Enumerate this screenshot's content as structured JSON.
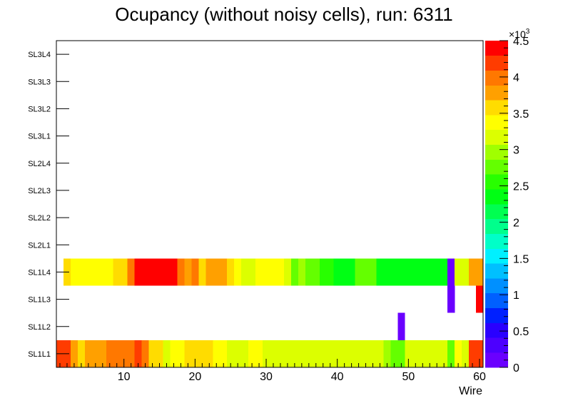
{
  "chart_data": {
    "type": "heatmap",
    "title": "Ocupancy (without noisy cells), run: 6311",
    "xlabel": "Wire",
    "ylabel": "",
    "xlim": [
      0.5,
      60.5
    ],
    "x_ticks": [
      "10",
      "20",
      "30",
      "40",
      "50",
      "60"
    ],
    "x_tick_values": [
      10,
      20,
      30,
      40,
      50,
      60
    ],
    "layers": [
      "SL1L1",
      "SL1L2",
      "SL1L3",
      "SL1L4",
      "SL2L1",
      "SL2L2",
      "SL2L3",
      "SL2L4",
      "SL3L1",
      "SL3L2",
      "SL3L3",
      "SL3L4"
    ],
    "zlim": [
      0,
      4500
    ],
    "z_ticks": [
      "0",
      "0.5",
      "1",
      "1.5",
      "2",
      "2.5",
      "3",
      "3.5",
      "4",
      "4.5"
    ],
    "z_tick_values": [
      0,
      500,
      1000,
      1500,
      2000,
      2500,
      3000,
      3500,
      4000,
      4500
    ],
    "z_exponent_base": "×10",
    "z_exponent_power": "3",
    "palette": [
      "#6a00ff",
      "#4c00ff",
      "#2a00ff",
      "#0020ff",
      "#0060ff",
      "#0090ff",
      "#00c0ff",
      "#00f0ff",
      "#00ffc8",
      "#00ff8c",
      "#00ff50",
      "#00ff14",
      "#28ff00",
      "#64ff00",
      "#a0ff00",
      "#dcff00",
      "#ffff00",
      "#ffdc00",
      "#ffa000",
      "#ff7800",
      "#ff3c00",
      "#ff0000"
    ],
    "rows": {
      "SL1L1": [
        4200,
        4200,
        3700,
        3500,
        3850,
        3800,
        3800,
        3950,
        3950,
        3950,
        3950,
        4100,
        3950,
        3600,
        3600,
        3250,
        3400,
        3350,
        3500,
        3500,
        3500,
        3500,
        3350,
        3300,
        3200,
        3200,
        3200,
        3400,
        3300,
        3150,
        3200,
        3200,
        3100,
        3100,
        3100,
        3100,
        3100,
        3100,
        3200,
        3100,
        3100,
        3100,
        3100,
        3100,
        3100,
        3100,
        3000,
        2700,
        2700,
        3100,
        3100,
        3100,
        3100,
        3100,
        3100,
        2750,
        3400,
        3150,
        4200,
        4200
      ],
      "SL1L2": [
        null,
        null,
        null,
        null,
        null,
        null,
        null,
        null,
        null,
        null,
        null,
        null,
        null,
        null,
        null,
        null,
        null,
        null,
        null,
        null,
        null,
        null,
        null,
        null,
        null,
        null,
        null,
        null,
        null,
        null,
        null,
        null,
        null,
        null,
        null,
        null,
        null,
        null,
        null,
        null,
        null,
        null,
        null,
        null,
        null,
        null,
        null,
        null,
        60,
        null,
        null,
        null,
        null,
        null,
        null,
        null,
        null,
        null,
        null,
        null
      ],
      "SL1L3": [
        null,
        null,
        null,
        null,
        null,
        null,
        null,
        null,
        null,
        null,
        null,
        null,
        null,
        null,
        null,
        null,
        null,
        null,
        null,
        null,
        null,
        null,
        null,
        null,
        null,
        null,
        null,
        null,
        null,
        null,
        null,
        null,
        null,
        null,
        null,
        null,
        null,
        null,
        null,
        null,
        null,
        null,
        null,
        null,
        null,
        null,
        null,
        null,
        null,
        null,
        null,
        null,
        null,
        null,
        null,
        60,
        null,
        null,
        null,
        4450
      ],
      "SL1L4": [
        null,
        3500,
        3400,
        3400,
        3400,
        3400,
        3400,
        3400,
        3600,
        3500,
        4000,
        4300,
        4400,
        4400,
        4400,
        4400,
        4300,
        3950,
        3750,
        3950,
        3600,
        3850,
        3850,
        3850,
        3550,
        3350,
        3150,
        3150,
        3350,
        3350,
        3350,
        3350,
        3150,
        2800,
        3000,
        2800,
        2800,
        2600,
        2600,
        2400,
        2400,
        2400,
        2800,
        2800,
        2800,
        2400,
        2400,
        2400,
        2400,
        2400,
        2400,
        2400,
        2400,
        2400,
        2400,
        60,
        3100,
        3100,
        3700,
        3850
      ]
    }
  }
}
